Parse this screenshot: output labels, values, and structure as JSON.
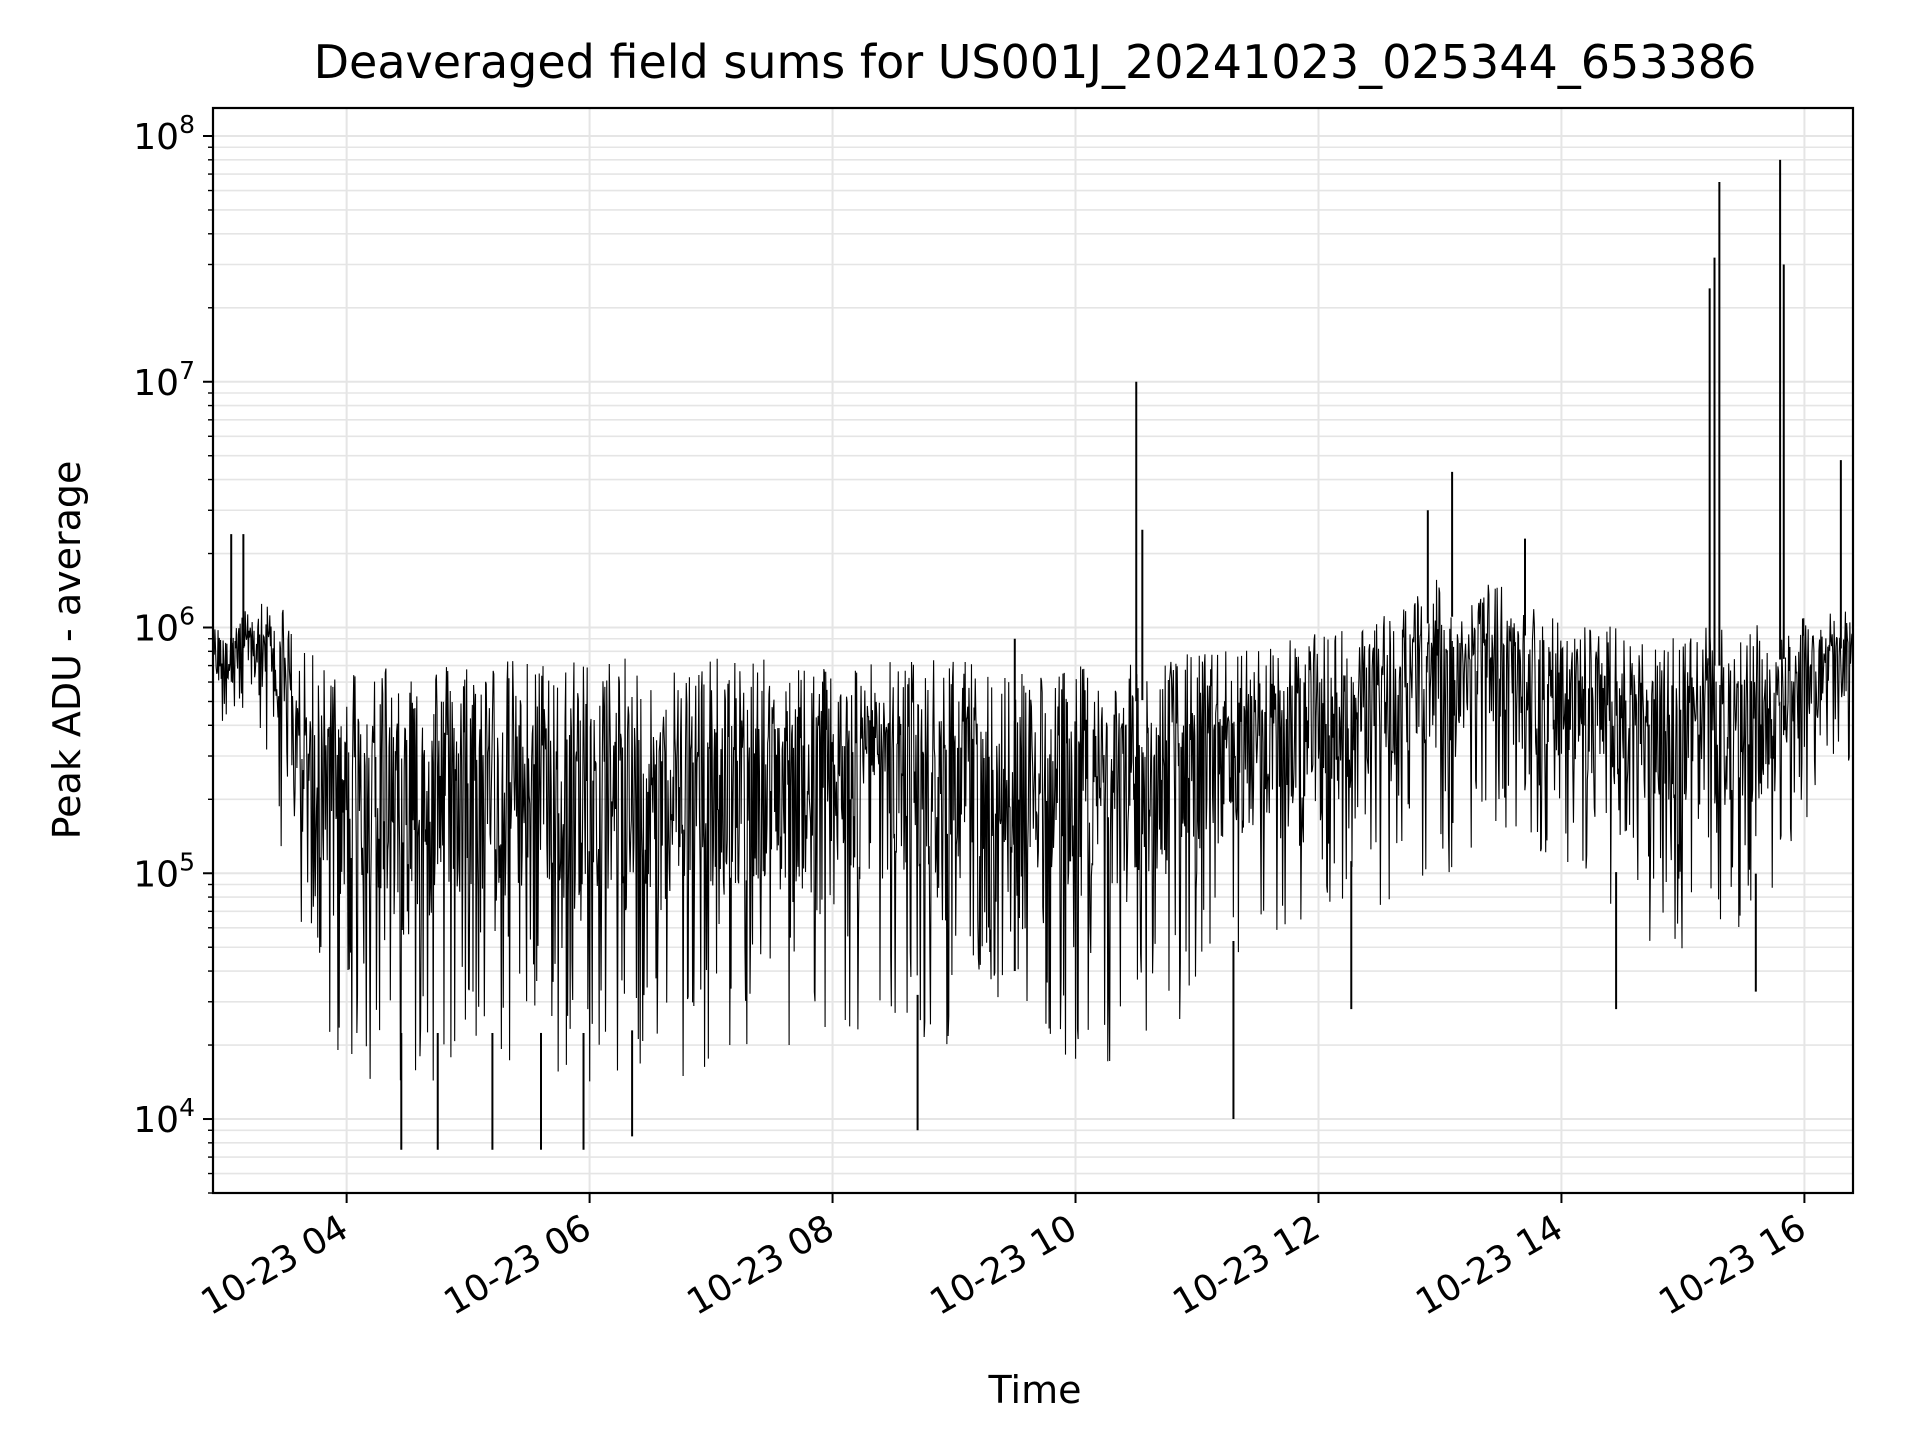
{
  "chart_data": {
    "type": "line",
    "title": "Deaveraged field sums for US001J_20241023_025344_653386",
    "xlabel": "Time",
    "ylabel": "Peak ADU - average",
    "yscale": "log",
    "ylim": [
      5000,
      130000000
    ],
    "xlim_hours": [
      2.9,
      16.4
    ],
    "grid": true,
    "line_color": "#000000",
    "grid_color": "#e5e5e5",
    "x_ticks": [
      {
        "label": "10-23 04",
        "hour": 4
      },
      {
        "label": "10-23 06",
        "hour": 6
      },
      {
        "label": "10-23 08",
        "hour": 8
      },
      {
        "label": "10-23 10",
        "hour": 10
      },
      {
        "label": "10-23 12",
        "hour": 12
      },
      {
        "label": "10-23 14",
        "hour": 14
      },
      {
        "label": "10-23 16",
        "hour": 16
      }
    ],
    "y_ticks": [
      {
        "base": "10",
        "exp": "4",
        "value": 10000
      },
      {
        "base": "10",
        "exp": "5",
        "value": 100000
      },
      {
        "base": "10",
        "exp": "6",
        "value": 1000000
      },
      {
        "base": "10",
        "exp": "7",
        "value": 10000000
      },
      {
        "base": "10",
        "exp": "8",
        "value": 100000000
      }
    ],
    "envelope": {
      "hour": [
        2.9,
        3.3,
        3.5,
        3.6,
        4.0,
        5.0,
        6.0,
        7.0,
        8.0,
        9.0,
        9.3,
        9.5,
        10.0,
        10.4,
        11.0,
        11.5,
        12.0,
        12.5,
        13.0,
        13.5,
        14.0,
        14.5,
        15.0,
        15.5,
        16.0,
        16.4
      ],
      "upper": [
        1000000,
        1300000,
        1200000,
        800000,
        750000,
        750000,
        750000,
        750000,
        750000,
        750000,
        700000,
        700000,
        700000,
        700000,
        800000,
        850000,
        950000,
        1100000,
        1600000,
        1500000,
        1100000,
        1000000,
        1000000,
        1000000,
        1100000,
        1200000
      ],
      "lower": [
        400000,
        300000,
        100000,
        30000,
        14000,
        14000,
        14000,
        15000,
        20000,
        20000,
        30000,
        25000,
        17000,
        17000,
        25000,
        40000,
        70000,
        70000,
        90000,
        150000,
        100000,
        60000,
        45000,
        50000,
        150000,
        300000
      ]
    },
    "spikes": [
      {
        "hour": 3.05,
        "value": 2400000
      },
      {
        "hour": 3.15,
        "value": 2400000
      },
      {
        "hour": 4.45,
        "value": 7500
      },
      {
        "hour": 4.75,
        "value": 7500
      },
      {
        "hour": 5.2,
        "value": 7500
      },
      {
        "hour": 5.6,
        "value": 7500
      },
      {
        "hour": 5.95,
        "value": 7500
      },
      {
        "hour": 6.35,
        "value": 8500
      },
      {
        "hour": 8.7,
        "value": 9000
      },
      {
        "hour": 9.5,
        "value": 900000
      },
      {
        "hour": 10.5,
        "value": 10000000
      },
      {
        "hour": 10.55,
        "value": 2500000
      },
      {
        "hour": 11.3,
        "value": 10000
      },
      {
        "hour": 12.27,
        "value": 28000
      },
      {
        "hour": 12.9,
        "value": 3000000
      },
      {
        "hour": 13.1,
        "value": 4300000
      },
      {
        "hour": 13.7,
        "value": 2300000
      },
      {
        "hour": 14.45,
        "value": 28000
      },
      {
        "hour": 15.22,
        "value": 24000000
      },
      {
        "hour": 15.26,
        "value": 32000000
      },
      {
        "hour": 15.3,
        "value": 65000000
      },
      {
        "hour": 15.6,
        "value": 33000
      },
      {
        "hour": 15.8,
        "value": 80000000
      },
      {
        "hour": 15.83,
        "value": 30000000
      },
      {
        "hour": 16.3,
        "value": 4800000
      }
    ]
  }
}
